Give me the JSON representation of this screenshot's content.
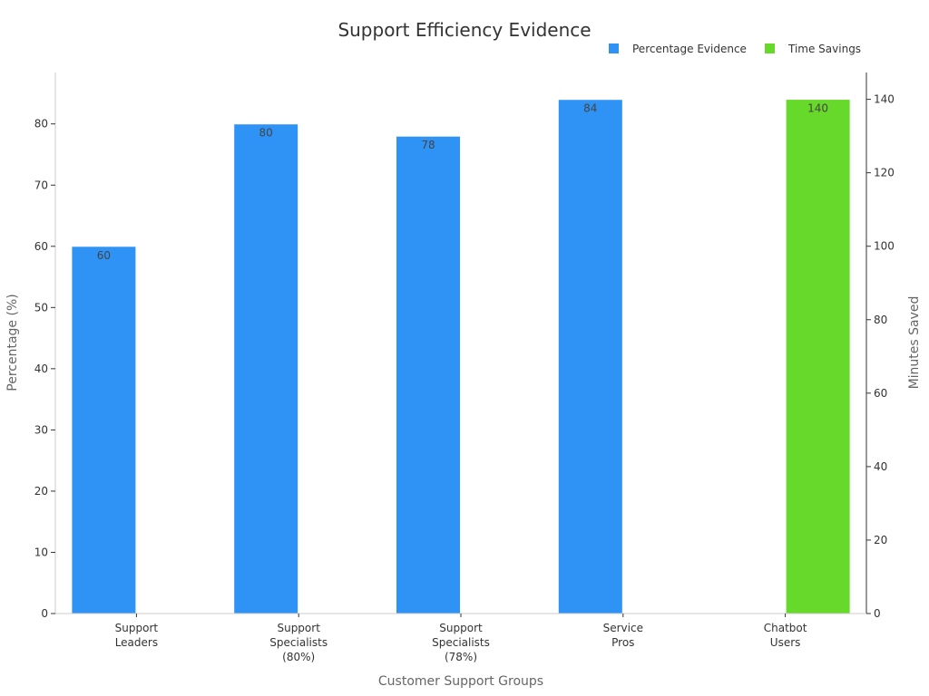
{
  "chart_data": {
    "type": "bar",
    "title": "Support Efficiency Evidence",
    "xlabel": "Customer Support Groups",
    "ylabel": "Percentage (%)",
    "y2label": "Minutes Saved",
    "categories": [
      [
        "Support",
        "Leaders"
      ],
      [
        "Support",
        "Specialists",
        "(80%)"
      ],
      [
        "Support",
        "Specialists",
        "(78%)"
      ],
      [
        "Service",
        "Pros"
      ],
      [
        "Chatbot",
        "Users"
      ]
    ],
    "ylim": [
      0,
      88.4
    ],
    "y2lim": [
      0,
      147.3
    ],
    "yticks": [
      0,
      10,
      20,
      30,
      40,
      50,
      60,
      70,
      80
    ],
    "y2ticks": [
      0,
      20,
      40,
      60,
      80,
      100,
      120,
      140
    ],
    "grid": false,
    "legend_position": "top-right",
    "series": [
      {
        "name": "Percentage Evidence",
        "axis": "left",
        "color": "#2f93f6",
        "values": [
          60,
          80,
          78,
          84,
          null
        ],
        "labels": [
          "60",
          "80",
          "78",
          "84",
          ""
        ]
      },
      {
        "name": "Time Savings",
        "axis": "right",
        "color": "#66d92a",
        "values": [
          null,
          null,
          null,
          null,
          140
        ],
        "labels": [
          "",
          "",
          "",
          "",
          "140"
        ]
      }
    ]
  }
}
